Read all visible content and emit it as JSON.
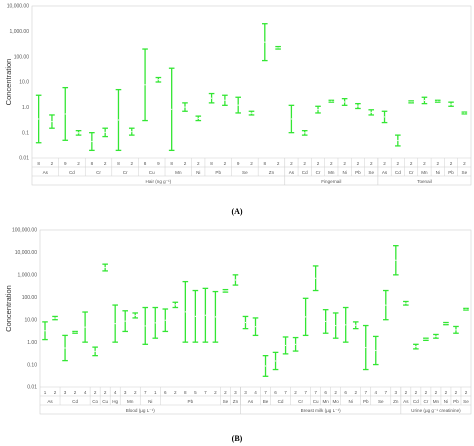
{
  "accent_color": "#33e633",
  "chart_data": [
    {
      "panel_label": "(A)",
      "type": "range",
      "ylabel": "Concentration",
      "y_scale": "log",
      "ylim": [
        0.01,
        10000
      ],
      "y_ticks": [
        "0.01",
        "0.1",
        "1.0",
        "10.0",
        "100.00",
        "1,000.00",
        "10,000.00"
      ],
      "groups": [
        {
          "name": "Hair (ng g⁻¹)",
          "elements": [
            {
              "name": "As",
              "items": [
                {
                  "n": "8",
                  "low": 0.04,
                  "high": 3.0
                },
                {
                  "n": "2",
                  "low": 0.15,
                  "high": 0.5
                }
              ]
            },
            {
              "name": "Cd",
              "items": [
                {
                  "n": "9",
                  "low": 0.05,
                  "high": 6.0
                },
                {
                  "n": "2",
                  "low": 0.08,
                  "high": 0.12
                }
              ]
            },
            {
              "name": "Cr",
              "items": [
                {
                  "n": "8",
                  "low": 0.02,
                  "high": 0.1
                },
                {
                  "n": "2",
                  "low": 0.07,
                  "high": 0.15
                }
              ]
            },
            {
              "name": "Cr",
              "items": [
                {
                  "n": "8",
                  "low": 0.02,
                  "high": 5.0
                },
                {
                  "n": "2",
                  "low": 0.08,
                  "high": 0.15
                }
              ]
            },
            {
              "name": "Cu",
              "items": [
                {
                  "n": "8",
                  "low": 0.3,
                  "high": 200
                },
                {
                  "n": "9",
                  "low": 10,
                  "high": 15
                }
              ]
            },
            {
              "name": "Mn",
              "items": [
                {
                  "n": "8",
                  "low": 0.02,
                  "high": 35
                },
                {
                  "n": "2",
                  "low": 0.7,
                  "high": 1.5
                }
              ]
            },
            {
              "name": "Ni",
              "items": [
                {
                  "n": "2",
                  "low": 0.3,
                  "high": 0.45
                }
              ]
            },
            {
              "name": "Pb",
              "items": [
                {
                  "n": "8",
                  "low": 1.5,
                  "high": 3.5
                },
                {
                  "n": "2",
                  "low": 1.2,
                  "high": 3.0
                }
              ]
            },
            {
              "name": "Se",
              "items": [
                {
                  "n": "9",
                  "low": 0.6,
                  "high": 2.5
                },
                {
                  "n": "2",
                  "low": 0.5,
                  "high": 0.7
                }
              ]
            },
            {
              "name": "Zn",
              "items": [
                {
                  "n": "8",
                  "low": 70,
                  "high": 2000
                },
                {
                  "n": "2",
                  "low": 200,
                  "high": 250
                }
              ]
            }
          ]
        },
        {
          "name": "Fingernail",
          "elements": [
            {
              "name": "As",
              "items": [
                {
                  "n": "2",
                  "low": 0.1,
                  "high": 1.2
                }
              ]
            },
            {
              "name": "Cd",
              "items": [
                {
                  "n": "2",
                  "low": 0.08,
                  "high": 0.12
                }
              ]
            },
            {
              "name": "Cr",
              "items": [
                {
                  "n": "2",
                  "low": 0.6,
                  "high": 1.1
                }
              ]
            },
            {
              "name": "Mn",
              "items": [
                {
                  "n": "2",
                  "low": 1.6,
                  "high": 1.9
                }
              ]
            },
            {
              "name": "Ni",
              "items": [
                {
                  "n": "2",
                  "low": 1.2,
                  "high": 2.2
                }
              ]
            },
            {
              "name": "Pb",
              "items": [
                {
                  "n": "2",
                  "low": 0.9,
                  "high": 1.4
                }
              ]
            },
            {
              "name": "Se",
              "items": [
                {
                  "n": "2",
                  "low": 0.5,
                  "high": 0.8
                }
              ]
            }
          ]
        },
        {
          "name": "Toenail",
          "elements": [
            {
              "name": "As",
              "items": [
                {
                  "n": "2",
                  "low": 0.25,
                  "high": 0.7
                }
              ]
            },
            {
              "name": "Cd",
              "items": [
                {
                  "n": "2",
                  "low": 0.03,
                  "high": 0.08
                }
              ]
            },
            {
              "name": "Cr",
              "items": [
                {
                  "n": "2",
                  "low": 1.5,
                  "high": 1.8
                }
              ]
            },
            {
              "name": "Mn",
              "items": [
                {
                  "n": "2",
                  "low": 1.4,
                  "high": 2.5
                }
              ]
            },
            {
              "name": "Ni",
              "items": [
                {
                  "n": "2",
                  "low": 1.6,
                  "high": 1.9
                }
              ]
            },
            {
              "name": "Pb",
              "items": [
                {
                  "n": "2",
                  "low": 1.1,
                  "high": 1.6
                }
              ]
            },
            {
              "name": "Se",
              "items": [
                {
                  "n": "2",
                  "low": 0.55,
                  "high": 0.65
                }
              ]
            }
          ]
        }
      ]
    },
    {
      "panel_label": "(B)",
      "type": "range",
      "ylabel": "Concentration",
      "y_scale": "log",
      "ylim": [
        0.01,
        100000
      ],
      "y_ticks": [
        "0.01",
        "0.10",
        "1.00",
        "10.00",
        "100.00",
        "1,000.00",
        "10,000.00",
        "100,000.00"
      ],
      "groups": [
        {
          "name": "Blood (µg L⁻¹)",
          "elements": [
            {
              "name": "As",
              "items": [
                {
                  "n": "1",
                  "low": 1.3,
                  "high": 8.0
                },
                {
                  "n": "2",
                  "low": 10,
                  "high": 14
                }
              ]
            },
            {
              "name": "Cd",
              "items": [
                {
                  "n": "3",
                  "low": 0.15,
                  "high": 2.0
                },
                {
                  "n": "2",
                  "low": 2.5,
                  "high": 3.0
                },
                {
                  "n": "4",
                  "low": 1.0,
                  "high": 22
                }
              ]
            },
            {
              "name": "Co",
              "items": [
                {
                  "n": "2",
                  "low": 0.25,
                  "high": 0.6
                }
              ]
            },
            {
              "name": "Cu",
              "items": [
                {
                  "n": "2",
                  "low": 1500,
                  "high": 3000
                }
              ]
            },
            {
              "name": "Hg",
              "items": [
                {
                  "n": "4",
                  "low": 1.0,
                  "high": 45
                }
              ]
            },
            {
              "name": "Mn",
              "items": [
                {
                  "n": "3",
                  "low": 3.0,
                  "high": 25
                },
                {
                  "n": "2",
                  "low": 12,
                  "high": 20
                }
              ]
            },
            {
              "name": "Ni",
              "items": [
                {
                  "n": "7",
                  "low": 0.8,
                  "high": 35
                },
                {
                  "n": "1",
                  "low": 1.5,
                  "high": 35
                }
              ]
            },
            {
              "name": "Pb",
              "items": [
                {
                  "n": "6",
                  "low": 3.0,
                  "high": 30
                },
                {
                  "n": "2",
                  "low": 35,
                  "high": 60
                },
                {
                  "n": "8",
                  "low": 1.0,
                  "high": 500
                },
                {
                  "n": "5",
                  "low": 1.0,
                  "high": 200
                },
                {
                  "n": "7",
                  "low": 1.0,
                  "high": 250
                },
                {
                  "n": "2",
                  "low": 1.0,
                  "high": 180
                }
              ]
            },
            {
              "name": "Se",
              "items": [
                {
                  "n": "2",
                  "low": 170,
                  "high": 220
                }
              ]
            },
            {
              "name": "Zn",
              "items": [
                {
                  "n": "3",
                  "low": 350,
                  "high": 1000
                }
              ]
            }
          ]
        },
        {
          "name": "Breast milk (µg L⁻¹)",
          "elements": [
            {
              "name": "As",
              "items": [
                {
                  "n": "3",
                  "low": 4.0,
                  "high": 14
                },
                {
                  "n": "4",
                  "low": 2.0,
                  "high": 12
                }
              ]
            },
            {
              "name": "Be",
              "items": [
                {
                  "n": "7",
                  "low": 0.03,
                  "high": 0.25
                }
              ]
            },
            {
              "name": "Cd",
              "items": [
                {
                  "n": "6",
                  "low": 0.06,
                  "high": 0.35
                },
                {
                  "n": "7",
                  "low": 0.3,
                  "high": 1.7
                }
              ]
            },
            {
              "name": "Cr",
              "items": [
                {
                  "n": "2",
                  "low": 0.4,
                  "high": 1.6
                },
                {
                  "n": "7",
                  "low": 2.0,
                  "high": 90
                }
              ]
            },
            {
              "name": "Cu",
              "items": [
                {
                  "n": "7",
                  "low": 200,
                  "high": 2500
                }
              ]
            },
            {
              "name": "Mn",
              "items": [
                {
                  "n": "6",
                  "low": 2.5,
                  "high": 28
                }
              ]
            },
            {
              "name": "Mo",
              "items": [
                {
                  "n": "2",
                  "low": 1.5,
                  "high": 20
                }
              ]
            },
            {
              "name": "Ni",
              "items": [
                {
                  "n": "6",
                  "low": 1.0,
                  "high": 35
                },
                {
                  "n": "2",
                  "low": 4.0,
                  "high": 8.0
                }
              ]
            },
            {
              "name": "Pb",
              "items": [
                {
                  "n": "7",
                  "low": 0.06,
                  "high": 5.5
                }
              ]
            },
            {
              "name": "Se",
              "items": [
                {
                  "n": "4",
                  "low": 0.1,
                  "high": 1.8
                },
                {
                  "n": "7",
                  "low": 10,
                  "high": 200
                }
              ]
            },
            {
              "name": "Zn",
              "items": [
                {
                  "n": "3",
                  "low": 1000,
                  "high": 20000
                }
              ]
            }
          ]
        },
        {
          "name": "Urine (µg g⁻¹ creatinine)",
          "elements": [
            {
              "name": "As",
              "items": [
                {
                  "n": "2",
                  "low": 45,
                  "high": 65
                }
              ]
            },
            {
              "name": "Cd",
              "items": [
                {
                  "n": "2",
                  "low": 0.5,
                  "high": 0.8
                }
              ]
            },
            {
              "name": "Cr",
              "items": [
                {
                  "n": "2",
                  "low": 1.2,
                  "high": 1.5
                }
              ]
            },
            {
              "name": "Mn",
              "items": [
                {
                  "n": "2",
                  "low": 1.5,
                  "high": 2.2
                }
              ]
            },
            {
              "name": "Ni",
              "items": [
                {
                  "n": "2",
                  "low": 6.0,
                  "high": 7.5
                }
              ]
            },
            {
              "name": "Pb",
              "items": [
                {
                  "n": "2",
                  "low": 2.5,
                  "high": 5.0
                }
              ]
            },
            {
              "name": "Se",
              "items": [
                {
                  "n": "2",
                  "low": 27,
                  "high": 32
                }
              ]
            }
          ]
        }
      ]
    }
  ]
}
